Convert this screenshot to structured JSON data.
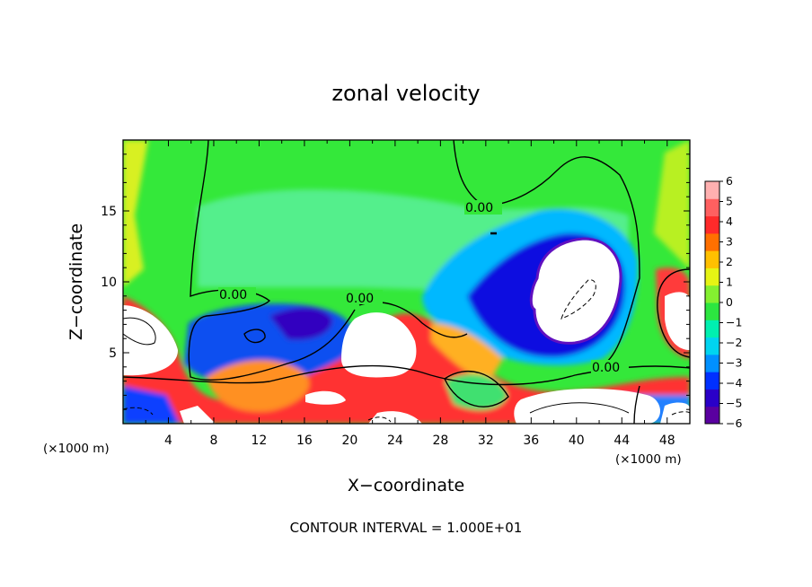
{
  "chart_data": {
    "type": "heatmap",
    "title": "zonal velocity",
    "xlabel": "X−coordinate",
    "ylabel": "Z−coordinate",
    "x_unit_left": "(×1000 m)",
    "x_unit_right": "(×1000 m)",
    "xlim": [
      0,
      50
    ],
    "ylim": [
      0,
      20
    ],
    "xticks": [
      4,
      8,
      12,
      16,
      20,
      24,
      28,
      32,
      36,
      40,
      44,
      48
    ],
    "yticks": [
      5,
      10,
      15
    ],
    "colorbar": {
      "ticks": [
        "6",
        "5",
        "4",
        "3",
        "2",
        "1",
        "0",
        "−1",
        "−2",
        "−3",
        "−4",
        "−5",
        "−6"
      ],
      "range": [
        -6,
        6
      ],
      "colors": [
        "#5a00a0",
        "#2a00c8",
        "#0030ff",
        "#0090ff",
        "#00d4f0",
        "#00f0b0",
        "#2ce640",
        "#84f030",
        "#e6f414",
        "#ffc000",
        "#ff7000",
        "#ff2a2a",
        "#ff6060",
        "#ffb0b0"
      ]
    },
    "contour_labels": [
      "0.00",
      "0.00",
      "0.00",
      "0.00"
    ],
    "footer": "CONTOUR INTERVAL = 1.000E+01"
  },
  "colors": {
    "background_field": "#2ce640",
    "saturated_positive": "#ffffff",
    "saturated_negative": "#ffffff"
  }
}
